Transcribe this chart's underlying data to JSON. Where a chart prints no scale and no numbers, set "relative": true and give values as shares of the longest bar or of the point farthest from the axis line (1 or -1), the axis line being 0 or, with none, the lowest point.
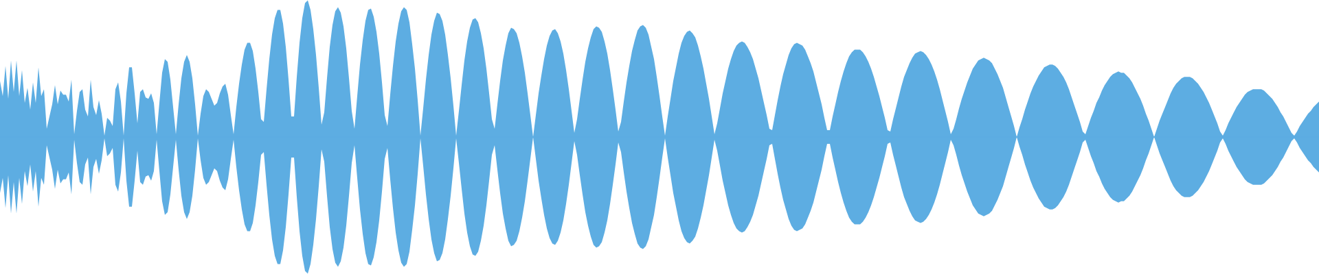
{
  "chart_data": {
    "type": "area",
    "relative": true,
    "ref_lines": [
      {
        "axis": "y",
        "value": 0,
        "color": "#5dade2"
      }
    ],
    "categories": [
      null,
      null,
      null,
      null,
      null,
      null,
      null,
      null,
      null,
      null,
      null,
      null,
      null,
      null,
      null,
      null,
      null,
      null,
      null,
      null,
      null,
      null,
      null,
      null,
      null,
      null,
      null,
      null,
      null,
      null,
      null,
      null,
      null,
      null,
      null,
      null,
      null,
      null,
      null,
      null,
      null,
      null,
      null,
      null,
      null,
      null,
      null,
      null,
      null,
      null,
      null,
      null,
      null,
      null,
      null,
      null,
      null,
      null,
      null,
      null,
      null,
      null,
      null,
      null,
      null,
      null,
      null,
      null,
      null,
      null,
      null,
      null,
      null,
      null,
      null,
      null,
      null,
      null,
      null,
      null,
      null,
      null,
      null,
      null,
      null,
      null,
      null,
      null,
      null,
      null,
      null,
      null,
      null,
      null,
      null,
      null,
      null,
      null,
      null,
      null,
      null,
      null,
      null,
      null,
      null,
      null,
      null,
      null,
      null,
      null,
      null,
      null,
      null,
      null,
      null,
      null,
      null,
      null,
      null,
      null,
      null,
      null,
      null,
      null,
      null,
      null,
      null,
      null,
      null,
      null,
      null,
      null,
      null,
      null,
      null,
      null,
      null,
      null,
      null,
      null,
      null,
      null,
      null,
      null,
      null,
      null,
      null,
      null,
      null,
      null,
      null,
      null,
      null,
      null,
      null,
      null,
      null,
      null,
      null,
      null,
      null,
      null,
      null,
      null,
      null,
      null,
      null,
      null,
      null,
      null,
      null,
      null,
      null,
      null,
      null,
      null,
      null,
      null,
      null,
      null,
      null,
      null,
      null,
      null,
      null,
      null,
      null,
      null,
      null,
      null,
      null,
      null,
      null,
      null,
      null,
      null,
      null,
      null,
      null,
      null,
      null,
      null,
      null,
      null,
      null,
      null,
      null,
      null,
      null,
      null,
      null,
      null,
      null,
      null,
      null,
      null,
      null,
      null,
      null,
      null,
      null,
      null,
      null,
      null,
      null,
      null,
      null,
      null,
      null,
      null,
      null,
      null,
      null,
      null,
      null,
      null,
      null,
      null,
      null,
      null,
      null,
      null,
      null,
      null,
      null,
      null,
      null,
      null,
      null,
      null,
      null,
      null,
      null,
      null,
      null,
      null,
      null,
      null,
      null,
      null,
      null,
      null,
      null,
      null,
      null,
      null,
      null,
      null,
      null,
      null,
      null,
      null,
      null,
      null,
      null,
      null,
      null,
      null,
      null,
      null,
      null,
      null,
      null,
      null,
      null,
      null,
      null,
      null,
      null,
      null,
      null,
      null,
      null,
      null,
      null,
      null,
      null,
      null,
      null,
      null,
      null,
      null,
      null,
      null,
      null,
      null,
      null,
      null,
      null,
      null,
      null,
      null,
      null,
      null,
      null,
      null,
      null,
      null,
      null,
      null,
      null,
      null,
      null,
      null,
      null,
      null,
      null,
      null,
      null,
      null,
      null,
      null,
      null,
      null,
      null,
      null,
      null,
      null,
      null,
      null,
      null,
      null,
      null,
      null,
      null,
      null,
      null,
      null,
      null,
      null,
      null,
      null,
      null,
      null,
      null,
      null,
      null,
      null,
      null,
      null,
      null,
      null,
      null,
      null,
      null,
      null,
      null,
      null,
      null,
      null,
      null,
      null,
      null,
      null,
      null,
      null,
      null,
      null,
      null,
      null,
      null,
      null,
      null,
      null,
      null,
      null,
      null,
      null,
      null,
      null,
      null,
      null,
      null,
      null,
      null,
      null,
      null,
      null,
      null,
      null,
      null,
      null,
      null,
      null,
      null,
      null,
      null,
      null,
      null,
      null,
      null,
      null,
      null,
      null,
      null,
      null,
      null,
      null,
      null,
      null,
      null,
      null,
      null,
      null,
      null,
      null,
      null,
      null,
      null,
      null,
      null,
      null,
      null,
      null,
      null,
      null,
      null,
      null,
      null,
      null,
      null,
      null,
      null,
      null,
      null,
      null,
      null,
      null,
      null,
      null,
      null,
      null,
      null,
      null,
      null,
      null,
      null,
      null,
      null,
      null,
      null,
      null,
      null,
      null,
      null,
      null,
      null,
      null,
      null,
      null,
      null,
      null,
      null,
      null,
      null,
      null,
      null,
      null,
      null,
      null,
      null
    ],
    "series": [
      {
        "color": "#5dade2",
        "values": [
          0.41,
          0.3,
          0.52,
          0.28,
          0.56,
          0.33,
          0.56,
          0.3,
          0.49,
          0.25,
          0.36,
          0.2,
          0.4,
          0.25,
          0.51,
          0.3,
          0.35,
          0.06,
          0.15,
          0.24,
          0.38,
          0.24,
          0.34,
          0.31,
          0.31,
          0.26,
          0.42,
          0.02,
          0.19,
          0.33,
          0.35,
          0.2,
          0.15,
          0.42,
          0.22,
          0.16,
          0.27,
          0.17,
          0.01,
          0.14,
          0.12,
          0.08,
          0.35,
          0.4,
          0.26,
          0.01,
          0.32,
          0.51,
          0.51,
          0.32,
          0.1,
          0.33,
          0.35,
          0.29,
          0.28,
          0.32,
          0.25,
          0.02,
          0.25,
          0.47,
          0.57,
          0.55,
          0.42,
          0.22,
          0.02,
          0.24,
          0.43,
          0.55,
          0.6,
          0.55,
          0.43,
          0.24,
          0.01,
          0.17,
          0.3,
          0.35,
          0.33,
          0.28,
          0.23,
          0.25,
          0.32,
          0.37,
          0.39,
          0.31,
          0.16,
          0.02,
          0.22,
          0.39,
          0.53,
          0.64,
          0.69,
          0.69,
          0.63,
          0.5,
          0.33,
          0.13,
          0.11,
          0.35,
          0.57,
          0.75,
          0.87,
          0.93,
          0.93,
          0.83,
          0.66,
          0.42,
          0.15,
          0.15,
          0.44,
          0.69,
          0.87,
          0.98,
          1.0,
          0.93,
          0.79,
          0.6,
          0.36,
          0.09,
          0.18,
          0.43,
          0.66,
          0.82,
          0.92,
          0.95,
          0.91,
          0.81,
          0.65,
          0.43,
          0.19,
          0.06,
          0.3,
          0.53,
          0.71,
          0.85,
          0.93,
          0.94,
          0.88,
          0.77,
          0.61,
          0.4,
          0.16,
          0.08,
          0.31,
          0.52,
          0.7,
          0.83,
          0.92,
          0.95,
          0.93,
          0.84,
          0.68,
          0.5,
          0.27,
          0.01,
          0.21,
          0.42,
          0.6,
          0.75,
          0.85,
          0.91,
          0.9,
          0.85,
          0.75,
          0.6,
          0.43,
          0.23,
          0.01,
          0.19,
          0.38,
          0.56,
          0.7,
          0.8,
          0.86,
          0.87,
          0.84,
          0.76,
          0.65,
          0.5,
          0.32,
          0.13,
          0.06,
          0.24,
          0.41,
          0.56,
          0.67,
          0.76,
          0.8,
          0.79,
          0.76,
          0.69,
          0.59,
          0.47,
          0.32,
          0.16,
          0.0,
          0.16,
          0.32,
          0.45,
          0.57,
          0.67,
          0.74,
          0.78,
          0.79,
          0.76,
          0.7,
          0.61,
          0.49,
          0.35,
          0.19,
          0.03,
          0.13,
          0.28,
          0.42,
          0.55,
          0.65,
          0.73,
          0.79,
          0.81,
          0.8,
          0.77,
          0.7,
          0.61,
          0.49,
          0.35,
          0.2,
          0.04,
          0.11,
          0.26,
          0.4,
          0.52,
          0.63,
          0.71,
          0.78,
          0.81,
          0.82,
          0.8,
          0.75,
          0.66,
          0.57,
          0.44,
          0.3,
          0.15,
          0.01,
          0.15,
          0.28,
          0.41,
          0.51,
          0.61,
          0.69,
          0.74,
          0.77,
          0.78,
          0.76,
          0.73,
          0.67,
          0.59,
          0.5,
          0.39,
          0.28,
          0.15,
          0.02,
          0.1,
          0.21,
          0.32,
          0.41,
          0.5,
          0.57,
          0.63,
          0.67,
          0.69,
          0.7,
          0.69,
          0.66,
          0.62,
          0.57,
          0.5,
          0.43,
          0.34,
          0.25,
          0.16,
          0.06,
          0.05,
          0.16,
          0.27,
          0.37,
          0.46,
          0.53,
          0.6,
          0.65,
          0.68,
          0.69,
          0.68,
          0.67,
          0.64,
          0.59,
          0.54,
          0.48,
          0.4,
          0.32,
          0.24,
          0.14,
          0.05,
          0.05,
          0.15,
          0.24,
          0.33,
          0.41,
          0.48,
          0.54,
          0.59,
          0.62,
          0.64,
          0.64,
          0.64,
          0.62,
          0.59,
          0.55,
          0.5,
          0.44,
          0.37,
          0.3,
          0.22,
          0.14,
          0.05,
          0.04,
          0.13,
          0.21,
          0.29,
          0.37,
          0.44,
          0.49,
          0.54,
          0.58,
          0.61,
          0.62,
          0.63,
          0.62,
          0.6,
          0.57,
          0.53,
          0.48,
          0.42,
          0.35,
          0.27,
          0.19,
          0.11,
          0.02,
          0.06,
          0.13,
          0.21,
          0.28,
          0.34,
          0.4,
          0.45,
          0.5,
          0.53,
          0.56,
          0.57,
          0.58,
          0.57,
          0.56,
          0.54,
          0.5,
          0.46,
          0.41,
          0.36,
          0.29,
          0.22,
          0.15,
          0.08,
          0.0,
          0.07,
          0.13,
          0.2,
          0.26,
          0.32,
          0.37,
          0.41,
          0.45,
          0.48,
          0.51,
          0.52,
          0.53,
          0.53,
          0.52,
          0.5,
          0.47,
          0.44,
          0.4,
          0.35,
          0.29,
          0.23,
          0.17,
          0.11,
          0.04,
          0.02,
          0.08,
          0.14,
          0.19,
          0.25,
          0.29,
          0.34,
          0.38,
          0.41,
          0.44,
          0.46,
          0.47,
          0.48,
          0.47,
          0.47,
          0.45,
          0.43,
          0.4,
          0.36,
          0.32,
          0.28,
          0.23,
          0.17,
          0.12,
          0.06,
          0.0,
          0.06,
          0.12,
          0.17,
          0.22,
          0.27,
          0.32,
          0.36,
          0.39,
          0.41,
          0.43,
          0.44,
          0.44,
          0.44,
          0.43,
          0.41,
          0.39,
          0.36,
          0.33,
          0.29,
          0.25,
          0.2,
          0.15,
          0.1,
          0.04,
          0.01,
          0.05,
          0.1,
          0.14,
          0.18,
          0.22,
          0.25,
          0.28,
          0.31,
          0.33,
          0.34,
          0.35,
          0.35,
          0.35,
          0.35,
          0.34,
          0.32,
          0.3,
          0.28,
          0.25,
          0.22,
          0.18,
          0.15,
          0.11,
          0.07,
          0.03,
          0.01,
          0.04,
          0.08,
          0.11,
          0.14,
          0.17,
          0.19,
          0.22,
          0.24,
          0.26
        ]
      },
      {
        "color": "#5dade2",
        "values": [
          -0.41,
          -0.3,
          -0.52,
          -0.28,
          -0.56,
          -0.33,
          -0.56,
          -0.3,
          -0.49,
          -0.25,
          -0.36,
          -0.2,
          -0.4,
          -0.25,
          -0.51,
          -0.3,
          -0.35,
          -0.06,
          -0.15,
          -0.24,
          -0.38,
          -0.24,
          -0.34,
          -0.31,
          -0.31,
          -0.26,
          -0.42,
          -0.02,
          -0.19,
          -0.33,
          -0.35,
          -0.2,
          -0.15,
          -0.42,
          -0.22,
          -0.16,
          -0.27,
          -0.17,
          -0.01,
          -0.14,
          -0.12,
          -0.08,
          -0.35,
          -0.4,
          -0.26,
          -0.01,
          -0.32,
          -0.51,
          -0.51,
          -0.32,
          -0.1,
          -0.33,
          -0.35,
          -0.29,
          -0.28,
          -0.32,
          -0.25,
          -0.02,
          -0.25,
          -0.47,
          -0.57,
          -0.55,
          -0.42,
          -0.22,
          -0.02,
          -0.24,
          -0.43,
          -0.55,
          -0.6,
          -0.55,
          -0.43,
          -0.24,
          -0.01,
          -0.17,
          -0.3,
          -0.35,
          -0.33,
          -0.28,
          -0.23,
          -0.25,
          -0.32,
          -0.37,
          -0.39,
          -0.31,
          -0.16,
          -0.02,
          -0.22,
          -0.39,
          -0.53,
          -0.64,
          -0.69,
          -0.69,
          -0.63,
          -0.5,
          -0.33,
          -0.13,
          -0.11,
          -0.35,
          -0.57,
          -0.75,
          -0.87,
          -0.93,
          -0.93,
          -0.83,
          -0.66,
          -0.42,
          -0.15,
          -0.15,
          -0.44,
          -0.69,
          -0.87,
          -0.98,
          -1.0,
          -0.93,
          -0.79,
          -0.6,
          -0.36,
          -0.09,
          -0.18,
          -0.43,
          -0.66,
          -0.82,
          -0.92,
          -0.95,
          -0.91,
          -0.81,
          -0.65,
          -0.43,
          -0.19,
          -0.06,
          -0.3,
          -0.53,
          -0.71,
          -0.85,
          -0.93,
          -0.94,
          -0.88,
          -0.77,
          -0.61,
          -0.4,
          -0.16,
          -0.08,
          -0.31,
          -0.52,
          -0.7,
          -0.83,
          -0.92,
          -0.95,
          -0.93,
          -0.84,
          -0.68,
          -0.5,
          -0.27,
          -0.01,
          -0.21,
          -0.42,
          -0.6,
          -0.75,
          -0.85,
          -0.91,
          -0.9,
          -0.85,
          -0.75,
          -0.6,
          -0.43,
          -0.23,
          -0.01,
          -0.19,
          -0.38,
          -0.56,
          -0.7,
          -0.8,
          -0.86,
          -0.87,
          -0.84,
          -0.76,
          -0.65,
          -0.5,
          -0.32,
          -0.13,
          -0.06,
          -0.24,
          -0.41,
          -0.56,
          -0.67,
          -0.76,
          -0.8,
          -0.79,
          -0.76,
          -0.69,
          -0.59,
          -0.47,
          -0.32,
          -0.16,
          0.0,
          -0.16,
          -0.32,
          -0.45,
          -0.57,
          -0.67,
          -0.74,
          -0.78,
          -0.79,
          -0.76,
          -0.7,
          -0.61,
          -0.49,
          -0.35,
          -0.19,
          -0.03,
          -0.13,
          -0.28,
          -0.42,
          -0.55,
          -0.65,
          -0.73,
          -0.79,
          -0.81,
          -0.8,
          -0.77,
          -0.7,
          -0.61,
          -0.49,
          -0.35,
          -0.2,
          -0.04,
          -0.11,
          -0.26,
          -0.4,
          -0.52,
          -0.63,
          -0.71,
          -0.78,
          -0.81,
          -0.82,
          -0.8,
          -0.75,
          -0.66,
          -0.57,
          -0.44,
          -0.3,
          -0.15,
          -0.01,
          -0.15,
          -0.28,
          -0.41,
          -0.51,
          -0.61,
          -0.69,
          -0.74,
          -0.77,
          -0.78,
          -0.76,
          -0.73,
          -0.67,
          -0.59,
          -0.5,
          -0.39,
          -0.28,
          -0.15,
          -0.02,
          -0.1,
          -0.21,
          -0.32,
          -0.41,
          -0.5,
          -0.57,
          -0.63,
          -0.67,
          -0.69,
          -0.7,
          -0.69,
          -0.66,
          -0.62,
          -0.57,
          -0.5,
          -0.43,
          -0.34,
          -0.25,
          -0.16,
          -0.06,
          -0.05,
          -0.16,
          -0.27,
          -0.37,
          -0.46,
          -0.53,
          -0.6,
          -0.65,
          -0.68,
          -0.69,
          -0.68,
          -0.67,
          -0.64,
          -0.59,
          -0.54,
          -0.48,
          -0.4,
          -0.32,
          -0.24,
          -0.14,
          -0.05,
          -0.05,
          -0.15,
          -0.24,
          -0.33,
          -0.41,
          -0.48,
          -0.54,
          -0.59,
          -0.62,
          -0.64,
          -0.64,
          -0.64,
          -0.62,
          -0.59,
          -0.55,
          -0.5,
          -0.44,
          -0.37,
          -0.3,
          -0.22,
          -0.14,
          -0.05,
          -0.04,
          -0.13,
          -0.21,
          -0.29,
          -0.37,
          -0.44,
          -0.49,
          -0.54,
          -0.58,
          -0.61,
          -0.62,
          -0.63,
          -0.62,
          -0.6,
          -0.57,
          -0.53,
          -0.48,
          -0.42,
          -0.35,
          -0.27,
          -0.19,
          -0.11,
          -0.02,
          -0.06,
          -0.13,
          -0.21,
          -0.28,
          -0.34,
          -0.4,
          -0.45,
          -0.5,
          -0.53,
          -0.56,
          -0.57,
          -0.58,
          -0.57,
          -0.56,
          -0.54,
          -0.5,
          -0.46,
          -0.41,
          -0.36,
          -0.29,
          -0.22,
          -0.15,
          -0.08,
          0.0,
          -0.07,
          -0.13,
          -0.2,
          -0.26,
          -0.32,
          -0.37,
          -0.41,
          -0.45,
          -0.48,
          -0.51,
          -0.52,
          -0.53,
          -0.53,
          -0.52,
          -0.5,
          -0.47,
          -0.44,
          -0.4,
          -0.35,
          -0.29,
          -0.23,
          -0.17,
          -0.11,
          -0.04,
          -0.02,
          -0.08,
          -0.14,
          -0.19,
          -0.25,
          -0.29,
          -0.34,
          -0.38,
          -0.41,
          -0.44,
          -0.46,
          -0.47,
          -0.48,
          -0.47,
          -0.47,
          -0.45,
          -0.43,
          -0.4,
          -0.36,
          -0.32,
          -0.28,
          -0.23,
          -0.17,
          -0.12,
          -0.06,
          0.0,
          -0.06,
          -0.12,
          -0.17,
          -0.22,
          -0.27,
          -0.32,
          -0.36,
          -0.39,
          -0.41,
          -0.43,
          -0.44,
          -0.44,
          -0.44,
          -0.43,
          -0.41,
          -0.39,
          -0.36,
          -0.33,
          -0.29,
          -0.25,
          -0.2,
          -0.15,
          -0.1,
          -0.04,
          -0.01,
          -0.05,
          -0.1,
          -0.14,
          -0.18,
          -0.22,
          -0.25,
          -0.28,
          -0.31,
          -0.33,
          -0.34,
          -0.35,
          -0.35,
          -0.35,
          -0.35,
          -0.34,
          -0.32,
          -0.3,
          -0.28,
          -0.25,
          -0.22,
          -0.18,
          -0.15,
          -0.11,
          -0.07,
          -0.03,
          -0.01,
          -0.04,
          -0.08,
          -0.11,
          -0.14,
          -0.17,
          -0.19,
          -0.22,
          -0.24,
          -0.26
        ]
      }
    ]
  }
}
